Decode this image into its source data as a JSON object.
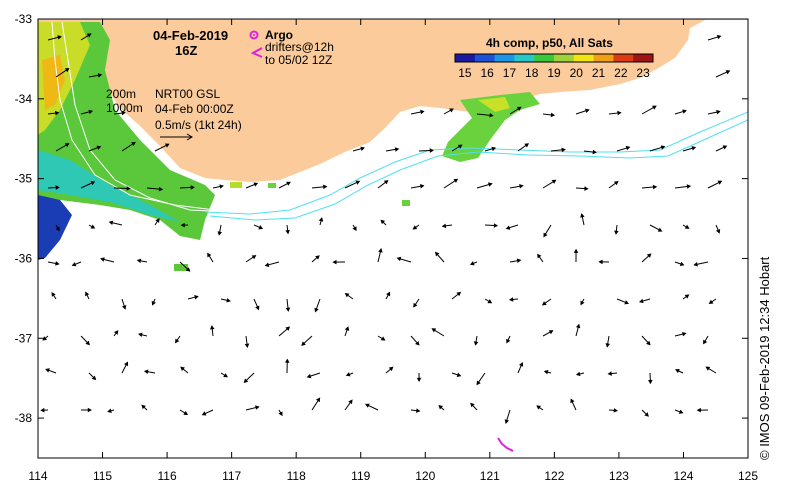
{
  "title": {
    "date": "04-Feb-2019",
    "hour": "16Z"
  },
  "legend": {
    "argo_label": "Argo",
    "drifters_line1": "drifters@12h",
    "drifters_line2": "to 05/02 12Z",
    "argo_color": "#e020e0",
    "drifter_color": "#e020e0"
  },
  "colorbar": {
    "title": "4h comp, p50, All Sats",
    "ticks": [
      "15",
      "16",
      "17",
      "18",
      "19",
      "20",
      "21",
      "22",
      "23"
    ],
    "colors": [
      "#1a1aa0",
      "#1e50d8",
      "#1e96e6",
      "#28c8c8",
      "#3cc83c",
      "#a0d23c",
      "#f0e614",
      "#f0a014",
      "#dc3c14",
      "#a01414"
    ]
  },
  "annotations": {
    "isobath_200": "200m",
    "isobath_1000": "1000m",
    "source": "NRT00 GSL",
    "time": "04-Feb 00:00Z",
    "scale": "0.5m/s (1kt 24h)"
  },
  "axes": {
    "x_ticks": [
      "114",
      "115",
      "116",
      "117",
      "118",
      "119",
      "120",
      "121",
      "122",
      "123",
      "124",
      "125"
    ],
    "y_ticks": [
      "-33",
      "-34",
      "-35",
      "-36",
      "-37",
      "-38"
    ],
    "xlim": [
      114,
      125
    ],
    "ylim": [
      -38.5,
      -33
    ]
  },
  "credit": "© IMOS 09-Feb-2019 12:34 Hobart",
  "colors": {
    "land": "#fbcb9b",
    "current": "#50e0f0",
    "isobath": "#ffffff"
  }
}
